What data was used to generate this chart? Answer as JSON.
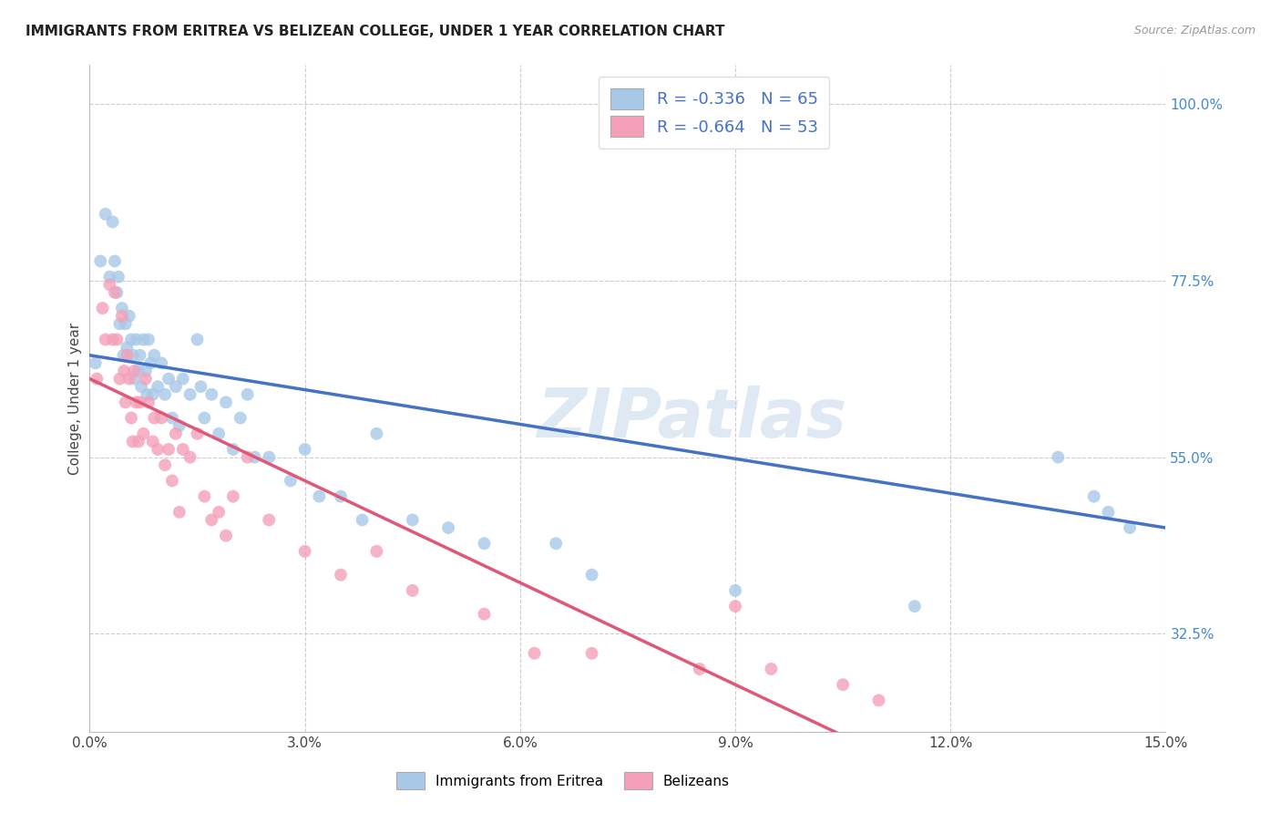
{
  "title": "IMMIGRANTS FROM ERITREA VS BELIZEAN COLLEGE, UNDER 1 YEAR CORRELATION CHART",
  "source": "Source: ZipAtlas.com",
  "ylabel": "College, Under 1 year",
  "xlim": [
    0.0,
    15.0
  ],
  "ylim": [
    20.0,
    105.0
  ],
  "xtick_labels": [
    "0.0%",
    "3.0%",
    "6.0%",
    "9.0%",
    "12.0%",
    "15.0%"
  ],
  "xtick_vals": [
    0.0,
    3.0,
    6.0,
    9.0,
    12.0,
    15.0
  ],
  "ytick_labels_right": [
    "100.0%",
    "77.5%",
    "55.0%",
    "32.5%"
  ],
  "ytick_vals_right": [
    100.0,
    77.5,
    55.0,
    32.5
  ],
  "blue_R": "-0.336",
  "blue_N": "65",
  "pink_R": "-0.664",
  "pink_N": "53",
  "blue_dot_color": "#a8c8e8",
  "pink_dot_color": "#f4a0b8",
  "blue_line_color": "#4472c4",
  "pink_line_color": "#e05878",
  "legend_label_blue": "Immigrants from Eritrea",
  "legend_label_pink": "Belizeans",
  "background_color": "#ffffff",
  "watermark": "ZIPatlas",
  "blue_x": [
    0.08,
    0.15,
    0.22,
    0.28,
    0.32,
    0.35,
    0.38,
    0.4,
    0.42,
    0.45,
    0.47,
    0.5,
    0.52,
    0.55,
    0.58,
    0.6,
    0.62,
    0.65,
    0.68,
    0.7,
    0.72,
    0.75,
    0.78,
    0.8,
    0.82,
    0.85,
    0.88,
    0.9,
    0.95,
    1.0,
    1.05,
    1.1,
    1.15,
    1.2,
    1.25,
    1.3,
    1.4,
    1.5,
    1.55,
    1.6,
    1.7,
    1.8,
    1.9,
    2.0,
    2.1,
    2.2,
    2.3,
    2.5,
    2.8,
    3.0,
    3.2,
    3.5,
    3.8,
    4.0,
    4.5,
    5.0,
    5.5,
    6.5,
    7.0,
    9.0,
    11.5,
    13.5,
    14.0,
    14.2,
    14.5
  ],
  "blue_y": [
    67.0,
    80.0,
    86.0,
    78.0,
    85.0,
    80.0,
    76.0,
    78.0,
    72.0,
    74.0,
    68.0,
    72.0,
    69.0,
    73.0,
    70.0,
    68.0,
    65.0,
    70.0,
    66.0,
    68.0,
    64.0,
    70.0,
    66.0,
    63.0,
    70.0,
    67.0,
    63.0,
    68.0,
    64.0,
    67.0,
    63.0,
    65.0,
    60.0,
    64.0,
    59.0,
    65.0,
    63.0,
    70.0,
    64.0,
    60.0,
    63.0,
    58.0,
    62.0,
    56.0,
    60.0,
    63.0,
    55.0,
    55.0,
    52.0,
    56.0,
    50.0,
    50.0,
    47.0,
    58.0,
    47.0,
    46.0,
    44.0,
    44.0,
    40.0,
    38.0,
    36.0,
    55.0,
    50.0,
    48.0,
    46.0
  ],
  "pink_x": [
    0.1,
    0.18,
    0.22,
    0.28,
    0.32,
    0.35,
    0.38,
    0.42,
    0.45,
    0.48,
    0.5,
    0.52,
    0.55,
    0.58,
    0.6,
    0.62,
    0.65,
    0.68,
    0.7,
    0.75,
    0.78,
    0.82,
    0.88,
    0.9,
    0.95,
    1.0,
    1.05,
    1.1,
    1.15,
    1.2,
    1.25,
    1.3,
    1.4,
    1.5,
    1.6,
    1.7,
    1.8,
    1.9,
    2.0,
    2.2,
    2.5,
    3.0,
    3.5,
    4.0,
    4.5,
    5.5,
    6.2,
    7.0,
    8.5,
    9.0,
    9.5,
    10.5,
    11.0
  ],
  "pink_y": [
    65.0,
    74.0,
    70.0,
    77.0,
    70.0,
    76.0,
    70.0,
    65.0,
    73.0,
    66.0,
    62.0,
    68.0,
    65.0,
    60.0,
    57.0,
    66.0,
    62.0,
    57.0,
    62.0,
    58.0,
    65.0,
    62.0,
    57.0,
    60.0,
    56.0,
    60.0,
    54.0,
    56.0,
    52.0,
    58.0,
    48.0,
    56.0,
    55.0,
    58.0,
    50.0,
    47.0,
    48.0,
    45.0,
    50.0,
    55.0,
    47.0,
    43.0,
    40.0,
    43.0,
    38.0,
    35.0,
    30.0,
    30.0,
    28.0,
    36.0,
    28.0,
    26.0,
    24.0
  ]
}
